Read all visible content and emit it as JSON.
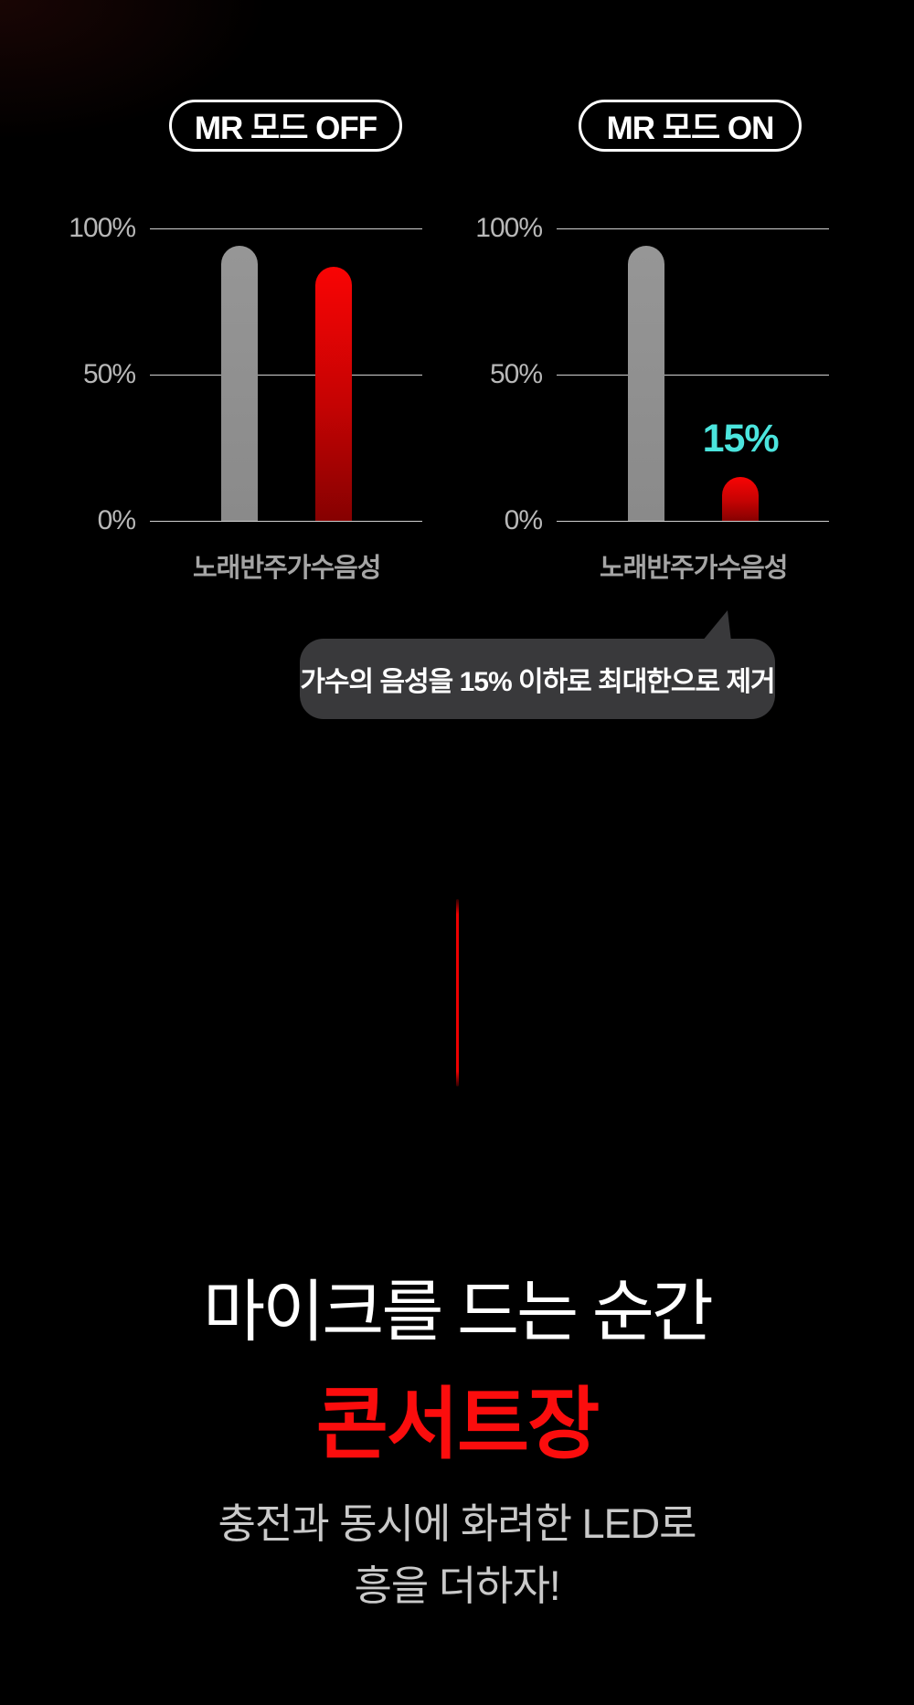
{
  "colors": {
    "background": "#000000",
    "pill_border": "#ffffff",
    "grid_line": "#d0d0d0",
    "bar_gray": "#909090",
    "bar_red_top": "#f90404",
    "bar_red_bottom": "#860101",
    "annotation_cyan": "#4be4dd",
    "callout_bg": "#39393b",
    "headline_red": "#fb0d0d",
    "subtitle_gray": "#c9c9c9",
    "accent_line_red": "#ee0000"
  },
  "mode_buttons": {
    "off_label": "MR 모드 OFF",
    "on_label": "MR 모드 ON"
  },
  "callout": {
    "text": "가수의 음성을 15% 이하로 최대한으로 제거"
  },
  "headline": {
    "line1": "마이크를 드는 순간",
    "line2": "콘서트장",
    "sub_line1": "충전과 동시에 화려한 LED로",
    "sub_line2": "흥을 더하자!"
  },
  "chart_data": [
    {
      "type": "bar",
      "title": "MR 모드 OFF",
      "categories": [
        "노래반주",
        "가수음성"
      ],
      "values": [
        94,
        87
      ],
      "bar_colors": [
        "gray",
        "red"
      ],
      "ylim": [
        0,
        100
      ],
      "yticks": [
        100,
        50,
        0
      ],
      "ytick_labels": [
        "100%",
        "50%",
        "0%"
      ],
      "grid": true,
      "legend": "none",
      "annotations": []
    },
    {
      "type": "bar",
      "title": "MR 모드 ON",
      "categories": [
        "노래반주",
        "가수음성"
      ],
      "values": [
        94,
        15
      ],
      "bar_colors": [
        "gray",
        "red"
      ],
      "ylim": [
        0,
        100
      ],
      "yticks": [
        100,
        50,
        0
      ],
      "ytick_labels": [
        "100%",
        "50%",
        "0%"
      ],
      "grid": true,
      "legend": "none",
      "annotations": [
        {
          "text": "15%",
          "category_index": 1,
          "color": "#4be4dd"
        }
      ]
    }
  ]
}
